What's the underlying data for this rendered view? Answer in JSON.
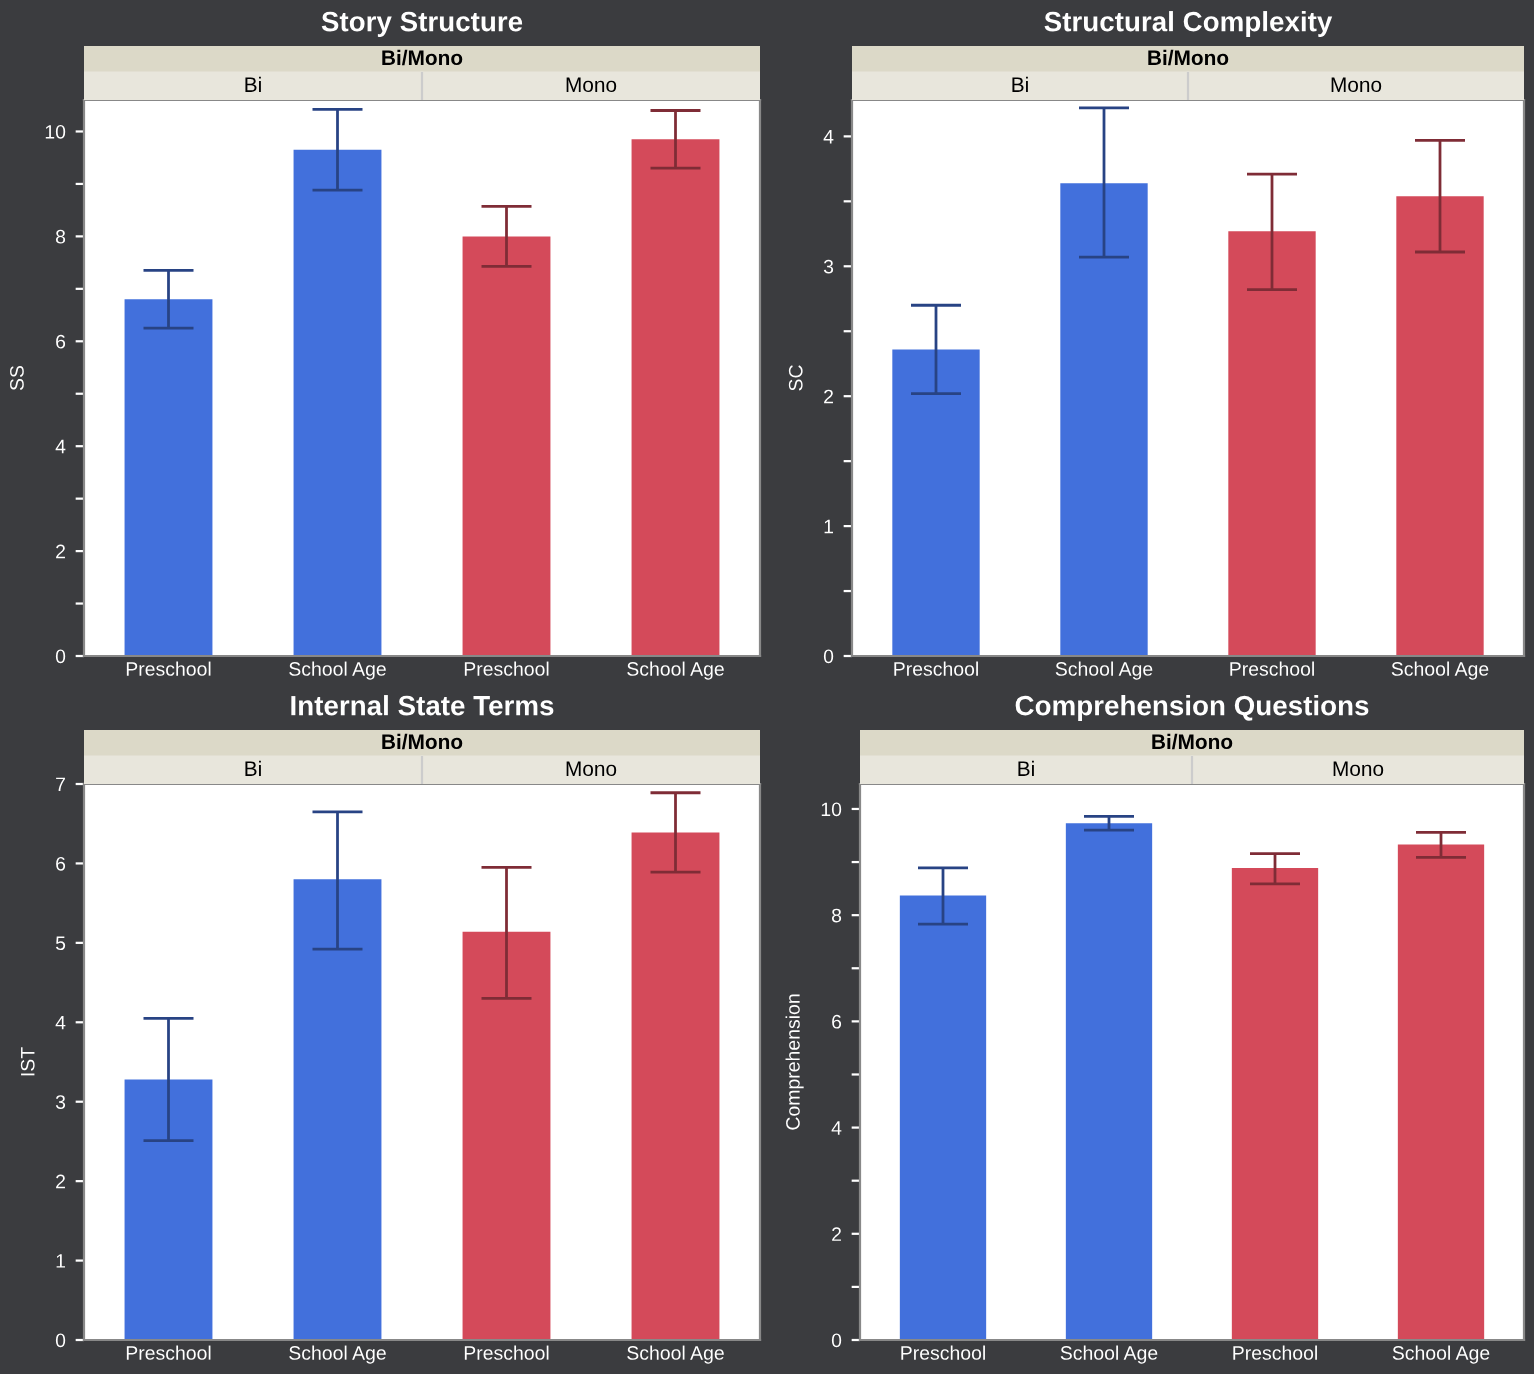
{
  "chart_data": [
    {
      "type": "bar",
      "title": "Story Structure",
      "ylabel": "SS",
      "categories": [
        "Preschool",
        "School Age",
        "Preschool",
        "School Age"
      ],
      "values": [
        6.8,
        9.65,
        8.0,
        9.85
      ],
      "colors": [
        "#4270dc",
        "#4270dc",
        "#d44a5a",
        "#d44a5a"
      ],
      "errors": [
        [
          6.25,
          7.35
        ],
        [
          8.88,
          10.42
        ],
        [
          7.43,
          8.57
        ],
        [
          9.3,
          10.4
        ]
      ],
      "ylim": [
        0,
        10.6
      ],
      "yticks": [
        0,
        {
          "value": 1,
          "label": null
        },
        2,
        {
          "value": 3,
          "label": null
        },
        4,
        {
          "value": 5,
          "label": null
        },
        6,
        {
          "value": 7,
          "label": null
        },
        8,
        {
          "value": 9,
          "label": null
        },
        10
      ],
      "annotations": [
        "Bi/Mono",
        "Bi",
        "Mono"
      ]
    },
    {
      "type": "bar",
      "title": "Structural Complexity",
      "ylabel": "SC",
      "categories": [
        "Preschool",
        "School Age",
        "Preschool",
        "School Age"
      ],
      "values": [
        2.36,
        3.64,
        3.27,
        3.54
      ],
      "colors": [
        "#4270dc",
        "#4270dc",
        "#d44a5a",
        "#d44a5a"
      ],
      "errors": [
        [
          2.02,
          2.7
        ],
        [
          3.07,
          4.22
        ],
        [
          2.82,
          3.71
        ],
        [
          3.11,
          3.97
        ]
      ],
      "ylim": [
        0,
        4.28
      ],
      "yticks": [
        0,
        {
          "value": 0.5,
          "label": null
        },
        1,
        {
          "value": 1.5,
          "label": null
        },
        2,
        {
          "value": 2.5,
          "label": null
        },
        3,
        {
          "value": 3.5,
          "label": null
        },
        4
      ],
      "annotations": [
        "Bi/Mono",
        "Bi",
        "Mono"
      ]
    },
    {
      "type": "bar",
      "title": "Internal State Terms",
      "ylabel": "IST",
      "categories": [
        "Preschool",
        "School Age",
        "Preschool",
        "School Age"
      ],
      "values": [
        3.28,
        5.8,
        5.14,
        6.39
      ],
      "colors": [
        "#4270dc",
        "#4270dc",
        "#d44a5a",
        "#d44a5a"
      ],
      "errors": [
        [
          2.51,
          4.05
        ],
        [
          4.92,
          6.65
        ],
        [
          4.3,
          5.95
        ],
        [
          5.89,
          6.89
        ]
      ],
      "ylim": [
        0,
        7
      ],
      "yticks": [
        0,
        1,
        2,
        3,
        4,
        5,
        6,
        7
      ],
      "annotations": [
        "Bi/Mono",
        "Bi",
        "Mono"
      ]
    },
    {
      "type": "bar",
      "title": "Comprehension Questions",
      "ylabel": "Comprehension",
      "categories": [
        "Preschool",
        "School Age",
        "Preschool",
        "School Age"
      ],
      "values": [
        8.37,
        9.73,
        8.89,
        9.33
      ],
      "colors": [
        "#4270dc",
        "#4270dc",
        "#d44a5a",
        "#d44a5a"
      ],
      "errors": [
        [
          7.83,
          8.89
        ],
        [
          9.6,
          9.86
        ],
        [
          8.59,
          9.16
        ],
        [
          9.09,
          9.56
        ]
      ],
      "ylim": [
        0,
        10.47
      ],
      "yticks": [
        0,
        {
          "value": 1,
          "label": null
        },
        2,
        {
          "value": 3,
          "label": null
        },
        4,
        {
          "value": 5,
          "label": null
        },
        6,
        {
          "value": 7,
          "label": null
        },
        8,
        {
          "value": 9,
          "label": null
        },
        10
      ],
      "annotations": [
        "Bi/Mono",
        "Bi",
        "Mono"
      ]
    }
  ]
}
